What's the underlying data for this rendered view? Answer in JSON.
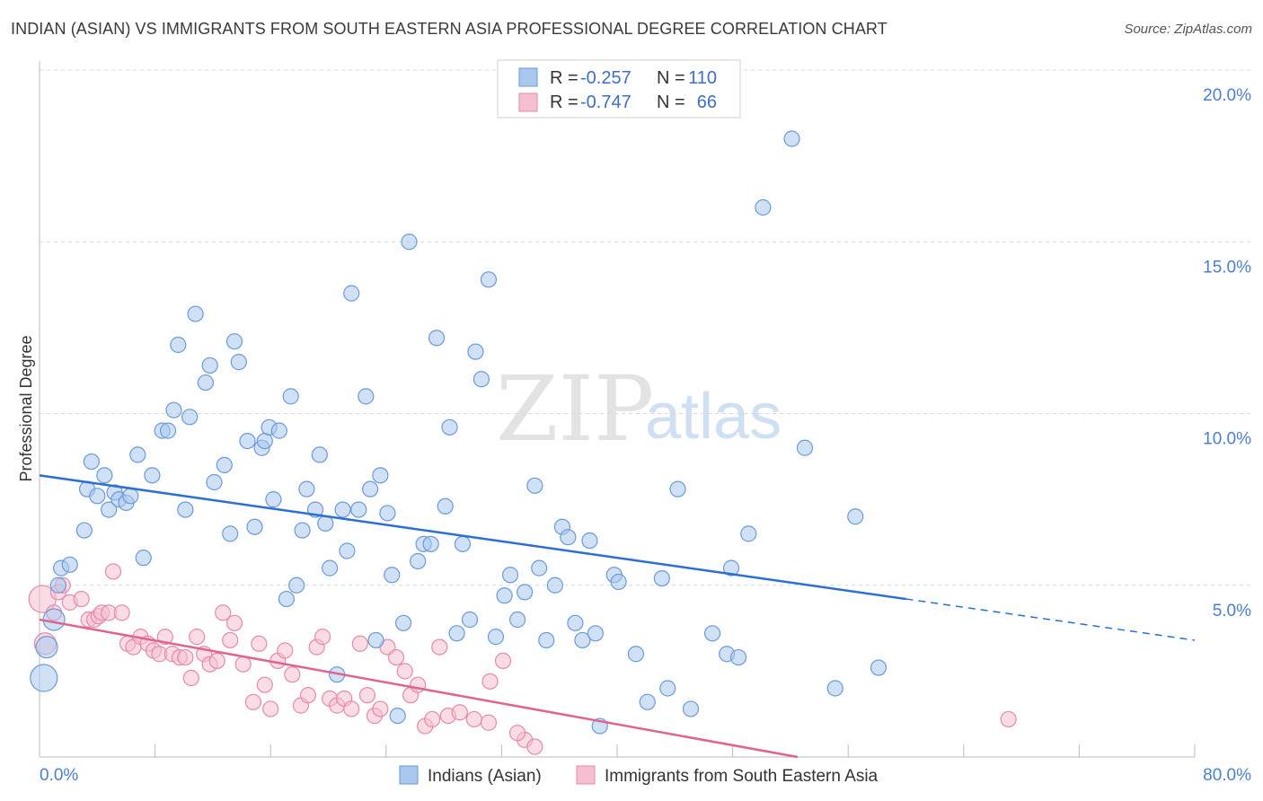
{
  "title": "INDIAN (ASIAN) VS IMMIGRANTS FROM SOUTH EASTERN ASIA PROFESSIONAL DEGREE CORRELATION CHART",
  "source": "Source: ZipAtlas.com",
  "watermark": {
    "zip": "ZIP",
    "atlas": "atlas"
  },
  "colors": {
    "blue_fill": "#aac8ee",
    "blue_stroke": "#6a9ad8",
    "blue_line": "#2a6fd1",
    "pink_fill": "#f6bfd0",
    "pink_stroke": "#e58aa8",
    "pink_line": "#e0648f",
    "tick_text": "#4a7fcf",
    "grid": "#d8d8d8"
  },
  "legend": {
    "r_label": "R =",
    "n_label": "N =",
    "rows": [
      {
        "r": "-0.257",
        "n": "110"
      },
      {
        "r": "-0.747",
        "n": "66"
      }
    ]
  },
  "chart_data": {
    "type": "scatter",
    "title": "INDIAN (ASIAN) VS IMMIGRANTS FROM SOUTH EASTERN ASIA PROFESSIONAL DEGREE CORRELATION CHART",
    "xlabel": "",
    "ylabel": "Professional Degree",
    "xlim": [
      0,
      80
    ],
    "ylim": [
      0,
      20
    ],
    "x_tick_labels": [
      "0.0%",
      "80.0%"
    ],
    "y_ticks": [
      5,
      10,
      15,
      20
    ],
    "y_tick_labels": [
      "5.0%",
      "10.0%",
      "15.0%",
      "20.0%"
    ],
    "grid": true,
    "series": [
      {
        "name": "Indians (Asian)",
        "color": "blue",
        "R": -0.257,
        "N": 110,
        "trend": {
          "x0": 0,
          "y0": 8.2,
          "x1": 60,
          "y1": 4.6,
          "dash_to_x": 80,
          "dash_to_y": 3.4
        },
        "points": [
          [
            0.3,
            2.3,
            3
          ],
          [
            0.5,
            3.2,
            2
          ],
          [
            1,
            4.0,
            2
          ],
          [
            1.3,
            5.0,
            1
          ],
          [
            1.5,
            5.5,
            1
          ],
          [
            2.1,
            5.6,
            1
          ],
          [
            3.1,
            6.6,
            1
          ],
          [
            3.3,
            7.8,
            1
          ],
          [
            3.6,
            8.6,
            1
          ],
          [
            4.0,
            7.6,
            1
          ],
          [
            4.5,
            8.2,
            1
          ],
          [
            4.8,
            7.2,
            1
          ],
          [
            5.2,
            7.7,
            1
          ],
          [
            5.5,
            7.5,
            1
          ],
          [
            6.0,
            7.4,
            1
          ],
          [
            6.3,
            7.6,
            1
          ],
          [
            6.8,
            8.8,
            1
          ],
          [
            7.2,
            5.8,
            1
          ],
          [
            7.8,
            8.2,
            1
          ],
          [
            8.5,
            9.5,
            1
          ],
          [
            8.9,
            9.5,
            1
          ],
          [
            9.3,
            10.1,
            1
          ],
          [
            9.6,
            12.0,
            1
          ],
          [
            10.1,
            7.2,
            1
          ],
          [
            10.4,
            9.9,
            1
          ],
          [
            10.8,
            12.9,
            1
          ],
          [
            11.5,
            10.9,
            1
          ],
          [
            11.8,
            11.4,
            1
          ],
          [
            12.1,
            8.0,
            1
          ],
          [
            12.8,
            8.5,
            1
          ],
          [
            13.2,
            6.5,
            1
          ],
          [
            13.5,
            12.1,
            1
          ],
          [
            13.8,
            11.5,
            1
          ],
          [
            14.4,
            9.2,
            1
          ],
          [
            14.9,
            6.7,
            1
          ],
          [
            15.4,
            9.0,
            1
          ],
          [
            15.6,
            9.2,
            1
          ],
          [
            15.9,
            9.6,
            1
          ],
          [
            16.2,
            7.5,
            1
          ],
          [
            16.6,
            9.5,
            1
          ],
          [
            17.1,
            4.6,
            1
          ],
          [
            17.4,
            10.5,
            1
          ],
          [
            17.8,
            5.0,
            1
          ],
          [
            18.2,
            6.6,
            1
          ],
          [
            18.5,
            7.8,
            1
          ],
          [
            19.1,
            7.2,
            1
          ],
          [
            19.4,
            8.8,
            1
          ],
          [
            19.8,
            6.8,
            1
          ],
          [
            20.1,
            5.5,
            1
          ],
          [
            20.6,
            2.4,
            1
          ],
          [
            21.0,
            7.2,
            1
          ],
          [
            21.3,
            6.0,
            1
          ],
          [
            21.6,
            13.5,
            1
          ],
          [
            22.1,
            7.2,
            1
          ],
          [
            22.6,
            10.5,
            1
          ],
          [
            22.9,
            7.8,
            1
          ],
          [
            23.3,
            3.4,
            1
          ],
          [
            23.6,
            8.2,
            1
          ],
          [
            24.1,
            7.1,
            1
          ],
          [
            24.4,
            5.3,
            1
          ],
          [
            24.8,
            1.2,
            1
          ],
          [
            25.2,
            3.9,
            1
          ],
          [
            25.6,
            15.0,
            1
          ],
          [
            26.2,
            5.7,
            1
          ],
          [
            26.6,
            6.2,
            1
          ],
          [
            27.1,
            6.2,
            1
          ],
          [
            27.5,
            12.2,
            1
          ],
          [
            28.1,
            7.3,
            1
          ],
          [
            28.4,
            9.6,
            1
          ],
          [
            28.9,
            3.6,
            1
          ],
          [
            29.3,
            6.2,
            1
          ],
          [
            29.8,
            4.0,
            1
          ],
          [
            30.2,
            11.8,
            1
          ],
          [
            30.6,
            11.0,
            1
          ],
          [
            31.1,
            13.9,
            1
          ],
          [
            31.6,
            3.5,
            1
          ],
          [
            32.2,
            4.7,
            1
          ],
          [
            32.6,
            5.3,
            1
          ],
          [
            33.1,
            4.0,
            1
          ],
          [
            33.6,
            4.8,
            1
          ],
          [
            34.3,
            7.9,
            1
          ],
          [
            34.6,
            5.5,
            1
          ],
          [
            35.1,
            3.4,
            1
          ],
          [
            35.7,
            5.0,
            1
          ],
          [
            36.2,
            6.7,
            1
          ],
          [
            36.6,
            6.4,
            1
          ],
          [
            37.1,
            3.9,
            1
          ],
          [
            37.6,
            3.4,
            1
          ],
          [
            38.1,
            6.3,
            1
          ],
          [
            38.5,
            3.6,
            1
          ],
          [
            38.8,
            0.9,
            1
          ],
          [
            39.8,
            5.3,
            1
          ],
          [
            40.1,
            5.1,
            1
          ],
          [
            41.3,
            3.0,
            1
          ],
          [
            42.1,
            1.6,
            1
          ],
          [
            43.1,
            5.2,
            1
          ],
          [
            43.5,
            2.0,
            1
          ],
          [
            44.2,
            7.8,
            1
          ],
          [
            45.1,
            1.4,
            1
          ],
          [
            46.6,
            3.6,
            1
          ],
          [
            47.6,
            3.0,
            1
          ],
          [
            48.4,
            2.9,
            1
          ],
          [
            49.1,
            6.5,
            1
          ],
          [
            50.1,
            16.0,
            1
          ],
          [
            52.1,
            18.0,
            1
          ],
          [
            55.1,
            2.0,
            1
          ],
          [
            58.1,
            2.6,
            1
          ],
          [
            56.5,
            7.0,
            1
          ],
          [
            53.0,
            9.0,
            1
          ],
          [
            47.9,
            5.5,
            1
          ]
        ]
      },
      {
        "name": "Immigrants from South Eastern Asia",
        "color": "pink",
        "R": -0.747,
        "N": 66,
        "trend": {
          "x0": 0,
          "y0": 4.0,
          "x1": 52.5,
          "y1": 0.0
        },
        "points": [
          [
            0.2,
            4.6,
            3
          ],
          [
            0.4,
            3.3,
            2
          ],
          [
            1.0,
            4.2,
            1
          ],
          [
            1.3,
            4.8,
            1
          ],
          [
            1.6,
            5.0,
            1
          ],
          [
            2.1,
            4.5,
            1
          ],
          [
            2.9,
            4.6,
            1
          ],
          [
            3.4,
            4.0,
            1
          ],
          [
            3.8,
            4.0,
            1
          ],
          [
            4.1,
            4.1,
            1
          ],
          [
            4.3,
            4.2,
            1
          ],
          [
            4.8,
            4.2,
            1
          ],
          [
            5.1,
            5.4,
            1
          ],
          [
            5.7,
            4.2,
            1
          ],
          [
            6.1,
            3.3,
            1
          ],
          [
            6.5,
            3.2,
            1
          ],
          [
            7.0,
            3.5,
            1
          ],
          [
            7.5,
            3.3,
            1
          ],
          [
            7.9,
            3.1,
            1
          ],
          [
            8.3,
            3.0,
            1
          ],
          [
            8.7,
            3.5,
            1
          ],
          [
            9.2,
            3.0,
            1
          ],
          [
            9.7,
            2.9,
            1
          ],
          [
            10.1,
            2.9,
            1
          ],
          [
            10.5,
            2.3,
            1
          ],
          [
            10.9,
            3.5,
            1
          ],
          [
            11.4,
            3.0,
            1
          ],
          [
            11.8,
            2.7,
            1
          ],
          [
            12.3,
            2.8,
            1
          ],
          [
            12.7,
            4.2,
            1
          ],
          [
            13.2,
            3.4,
            1
          ],
          [
            13.5,
            3.9,
            1
          ],
          [
            14.1,
            2.7,
            1
          ],
          [
            14.8,
            1.6,
            1
          ],
          [
            15.2,
            3.3,
            1
          ],
          [
            15.6,
            2.1,
            1
          ],
          [
            16.0,
            1.4,
            1
          ],
          [
            16.5,
            2.8,
            1
          ],
          [
            17.0,
            3.1,
            1
          ],
          [
            17.5,
            2.4,
            1
          ],
          [
            18.1,
            1.5,
            1
          ],
          [
            18.6,
            1.8,
            1
          ],
          [
            19.2,
            3.2,
            1
          ],
          [
            19.6,
            3.5,
            1
          ],
          [
            20.1,
            1.7,
            1
          ],
          [
            20.6,
            1.5,
            1
          ],
          [
            21.1,
            1.7,
            1
          ],
          [
            21.6,
            1.4,
            1
          ],
          [
            22.2,
            3.3,
            1
          ],
          [
            22.7,
            1.8,
            1
          ],
          [
            23.2,
            1.2,
            1
          ],
          [
            23.6,
            1.4,
            1
          ],
          [
            24.1,
            3.2,
            1
          ],
          [
            24.7,
            2.9,
            1
          ],
          [
            25.3,
            2.5,
            1
          ],
          [
            25.7,
            1.8,
            1
          ],
          [
            26.2,
            2.1,
            1
          ],
          [
            26.7,
            0.9,
            1
          ],
          [
            27.2,
            1.1,
            1
          ],
          [
            27.7,
            3.2,
            1
          ],
          [
            28.3,
            1.2,
            1
          ],
          [
            29.1,
            1.3,
            1
          ],
          [
            30.1,
            1.1,
            1
          ],
          [
            31.2,
            2.2,
            1
          ],
          [
            32.1,
            2.8,
            1
          ],
          [
            33.6,
            0.5,
            1
          ]
        ]
      }
    ],
    "extra_points_pink": [
      [
        33.1,
        0.7,
        1
      ],
      [
        34.3,
        0.3,
        1
      ],
      [
        67.1,
        1.1,
        1
      ],
      [
        31.1,
        1.0,
        1
      ]
    ]
  },
  "bottom_legend": [
    "Indians (Asian)",
    "Immigrants from South Eastern Asia"
  ]
}
